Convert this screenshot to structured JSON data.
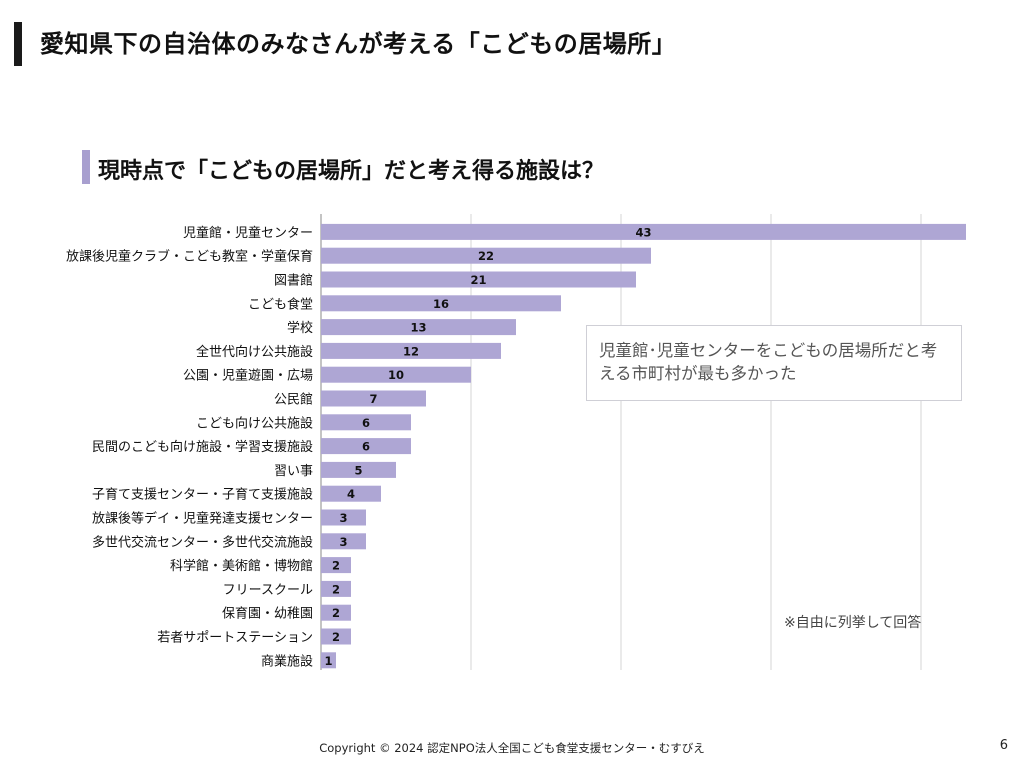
{
  "header": {
    "title": "愛知県下の自治体のみなさんが考える「こどもの居場所」"
  },
  "subtitle": "現時点で「こどもの居場所」だと考え得る施設は？",
  "callout": {
    "text": "児童館･児童センターをこどもの居場所だと考える市町村が最も多かった"
  },
  "note": "※自由に列挙して回答",
  "footer": {
    "copyright": "Copyright © 2024 認定NPO法人全国こども食堂支援センター・むすびえ",
    "page": "6"
  },
  "chart_data": {
    "type": "bar",
    "orientation": "horizontal",
    "categories": [
      "児童館・児童センター",
      "放課後児童クラブ・こども教室・学童保育",
      "図書館",
      "こども食堂",
      "学校",
      "全世代向け公共施設",
      "公園・児童遊園・広場",
      "公民館",
      "こども向け公共施設",
      "民間のこども向け施設・学習支援施設",
      "習い事",
      "子育て支援センター・子育て支援施設",
      "放課後等デイ・児童発達支援センター",
      "多世代交流センター・多世代交流施設",
      "科学館・美術館・博物館",
      "フリースクール",
      "保育園・幼稚園",
      "若者サポートステーション",
      "商業施設"
    ],
    "values": [
      43,
      22,
      21,
      16,
      13,
      12,
      10,
      7,
      6,
      6,
      5,
      4,
      3,
      3,
      2,
      2,
      2,
      2,
      1
    ],
    "xlim": [
      0,
      43
    ],
    "grid": true,
    "bar_color": "#aea6d4",
    "gridline_color": "#d6d6d6"
  }
}
